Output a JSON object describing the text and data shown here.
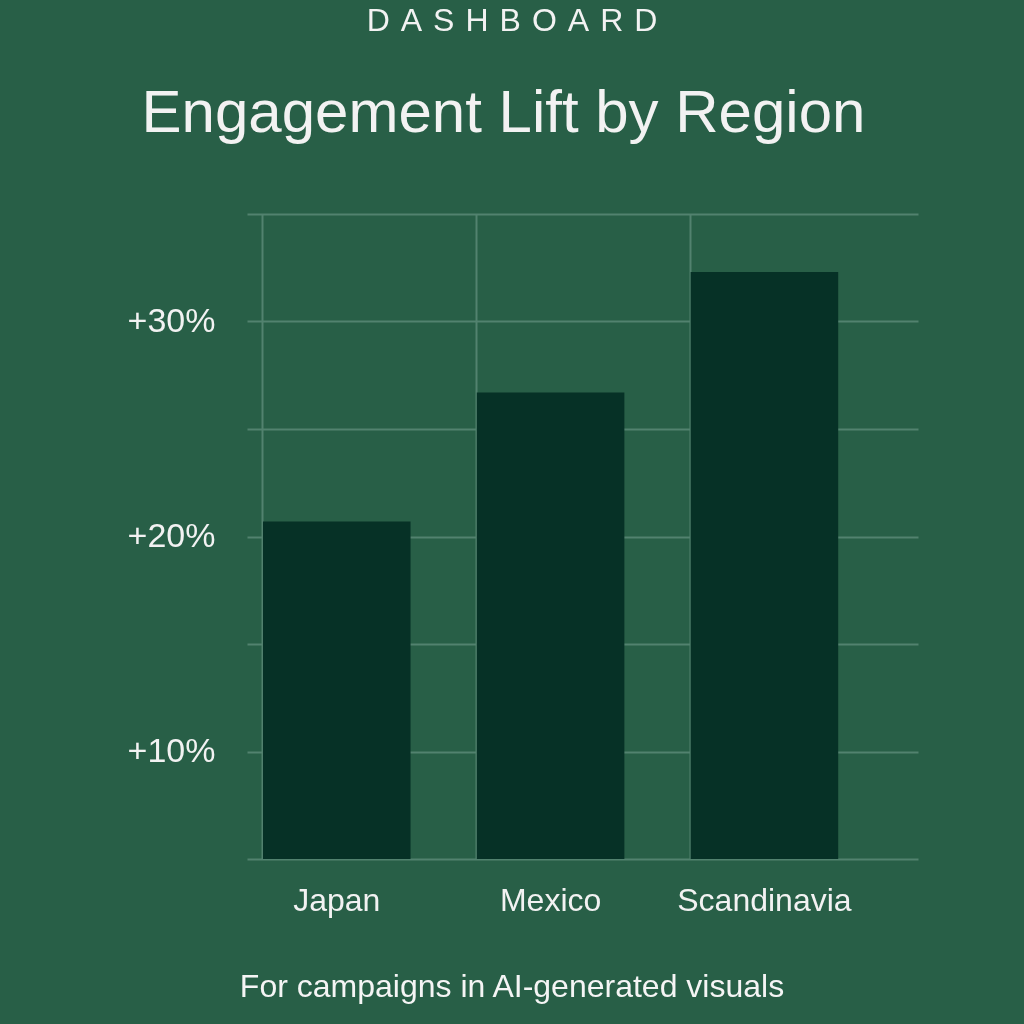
{
  "chart_data": {
    "type": "bar",
    "title": "Engagement Lift by Region",
    "subtitle": "DASHBOARD",
    "categories": [
      "Japan",
      "Mexico",
      "Scandinavia"
    ],
    "values": [
      20.7,
      26.7,
      32.3
    ],
    "color": "#063126",
    "ylim": [
      5,
      35
    ],
    "yticks": [
      {
        "value": 5,
        "label": null
      },
      {
        "value": 10,
        "label": "+10%"
      },
      {
        "value": 15,
        "label": null
      },
      {
        "value": 20,
        "label": "+20%"
      },
      {
        "value": 25,
        "label": null
      },
      {
        "value": 30,
        "label": "+30%"
      },
      {
        "value": 35,
        "label": null
      }
    ],
    "grid": true,
    "annotations": [
      "For campaigns in AI-generated visuals"
    ]
  }
}
